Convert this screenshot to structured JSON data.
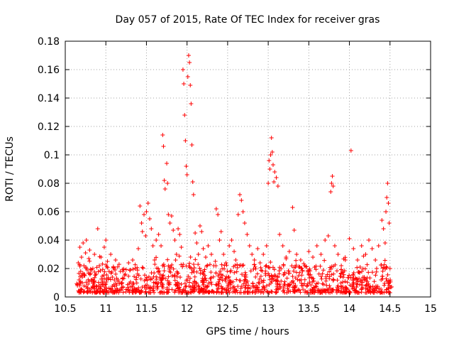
{
  "chart_data": {
    "type": "scatter",
    "title": "Day 057 of 2015, Rate Of TEC Index for receiver gras",
    "xlabel": "GPS time / hours",
    "ylabel": "ROTI / TECUs",
    "xlim": [
      10.5,
      15
    ],
    "ylim": [
      0,
      0.18
    ],
    "xticks": [
      "10.5",
      "11",
      "11.5",
      "12",
      "12.5",
      "13",
      "13.5",
      "14",
      "14.5",
      "15"
    ],
    "yticks": [
      "0",
      "0.02",
      "0.04",
      "0.06",
      "0.08",
      "0.1",
      "0.12",
      "0.14",
      "0.16",
      "0.18"
    ],
    "grid": true,
    "marker": "+",
    "color": "#ff0000",
    "series": [
      {
        "name": "ROTI",
        "points": [
          [
            10.65,
            0.008
          ],
          [
            10.66,
            0.024
          ],
          [
            10.67,
            0.012
          ],
          [
            10.68,
            0.035
          ],
          [
            10.69,
            0.018
          ],
          [
            10.7,
            0.028
          ],
          [
            10.71,
            0.01
          ],
          [
            10.72,
            0.038
          ],
          [
            10.73,
            0.022
          ],
          [
            10.74,
            0.015
          ],
          [
            10.75,
            0.031
          ],
          [
            10.76,
            0.04
          ],
          [
            10.77,
            0.019
          ],
          [
            10.78,
            0.009
          ],
          [
            10.79,
            0.027
          ],
          [
            10.8,
            0.033
          ],
          [
            10.82,
            0.012
          ],
          [
            10.84,
            0.02
          ],
          [
            10.86,
            0.03
          ],
          [
            10.88,
            0.016
          ],
          [
            10.9,
            0.048
          ],
          [
            10.92,
            0.022
          ],
          [
            10.94,
            0.028
          ],
          [
            10.96,
            0.011
          ],
          [
            10.98,
            0.035
          ],
          [
            11.0,
            0.04
          ],
          [
            11.02,
            0.025
          ],
          [
            11.04,
            0.018
          ],
          [
            11.06,
            0.03
          ],
          [
            11.08,
            0.014
          ],
          [
            11.1,
            0.02
          ],
          [
            11.12,
            0.026
          ],
          [
            11.15,
            0.012
          ],
          [
            11.18,
            0.018
          ],
          [
            11.2,
            0.01
          ],
          [
            11.24,
            0.016
          ],
          [
            11.28,
            0.024
          ],
          [
            11.3,
            0.019
          ],
          [
            11.33,
            0.026
          ],
          [
            11.36,
            0.02
          ],
          [
            11.4,
            0.034
          ],
          [
            11.42,
            0.064
          ],
          [
            11.44,
            0.052
          ],
          [
            11.45,
            0.046
          ],
          [
            11.47,
            0.058
          ],
          [
            11.49,
            0.043
          ],
          [
            11.5,
            0.06
          ],
          [
            11.52,
            0.066
          ],
          [
            11.54,
            0.055
          ],
          [
            11.56,
            0.048
          ],
          [
            11.58,
            0.036
          ],
          [
            11.6,
            0.026
          ],
          [
            11.62,
            0.04
          ],
          [
            11.65,
            0.044
          ],
          [
            11.68,
            0.036
          ],
          [
            11.7,
            0.114
          ],
          [
            11.71,
            0.106
          ],
          [
            11.72,
            0.082
          ],
          [
            11.73,
            0.076
          ],
          [
            11.75,
            0.094
          ],
          [
            11.76,
            0.08
          ],
          [
            11.77,
            0.058
          ],
          [
            11.79,
            0.052
          ],
          [
            11.81,
            0.057
          ],
          [
            11.83,
            0.047
          ],
          [
            11.85,
            0.04
          ],
          [
            11.87,
            0.03
          ],
          [
            11.89,
            0.048
          ],
          [
            11.91,
            0.044
          ],
          [
            11.93,
            0.035
          ],
          [
            11.95,
            0.16
          ],
          [
            11.96,
            0.15
          ],
          [
            11.97,
            0.128
          ],
          [
            11.98,
            0.11
          ],
          [
            11.99,
            0.092
          ],
          [
            12.0,
            0.086
          ],
          [
            12.01,
            0.155
          ],
          [
            12.02,
            0.17
          ],
          [
            12.03,
            0.165
          ],
          [
            12.04,
            0.149
          ],
          [
            12.05,
            0.136
          ],
          [
            12.06,
            0.107
          ],
          [
            12.07,
            0.081
          ],
          [
            12.08,
            0.072
          ],
          [
            12.1,
            0.045
          ],
          [
            12.12,
            0.038
          ],
          [
            12.14,
            0.03
          ],
          [
            12.16,
            0.05
          ],
          [
            12.18,
            0.046
          ],
          [
            12.2,
            0.034
          ],
          [
            12.23,
            0.028
          ],
          [
            12.26,
            0.036
          ],
          [
            12.3,
            0.03
          ],
          [
            12.33,
            0.022
          ],
          [
            12.36,
            0.062
          ],
          [
            12.38,
            0.058
          ],
          [
            12.4,
            0.04
          ],
          [
            12.42,
            0.046
          ],
          [
            12.45,
            0.03
          ],
          [
            12.48,
            0.024
          ],
          [
            12.52,
            0.036
          ],
          [
            12.55,
            0.04
          ],
          [
            12.58,
            0.032
          ],
          [
            12.6,
            0.026
          ],
          [
            12.63,
            0.058
          ],
          [
            12.65,
            0.072
          ],
          [
            12.67,
            0.068
          ],
          [
            12.69,
            0.06
          ],
          [
            12.71,
            0.052
          ],
          [
            12.74,
            0.044
          ],
          [
            12.77,
            0.036
          ],
          [
            12.8,
            0.03
          ],
          [
            12.83,
            0.026
          ],
          [
            12.87,
            0.034
          ],
          [
            12.9,
            0.024
          ],
          [
            12.94,
            0.03
          ],
          [
            12.98,
            0.036
          ],
          [
            13.0,
            0.08
          ],
          [
            13.01,
            0.096
          ],
          [
            13.02,
            0.09
          ],
          [
            13.03,
            0.1
          ],
          [
            13.04,
            0.112
          ],
          [
            13.05,
            0.102
          ],
          [
            13.06,
            0.093
          ],
          [
            13.07,
            0.081
          ],
          [
            13.08,
            0.088
          ],
          [
            13.1,
            0.084
          ],
          [
            13.12,
            0.078
          ],
          [
            13.14,
            0.044
          ],
          [
            13.18,
            0.036
          ],
          [
            13.22,
            0.028
          ],
          [
            13.26,
            0.032
          ],
          [
            13.3,
            0.063
          ],
          [
            13.32,
            0.047
          ],
          [
            13.35,
            0.03
          ],
          [
            13.4,
            0.026
          ],
          [
            13.45,
            0.022
          ],
          [
            13.5,
            0.032
          ],
          [
            13.55,
            0.028
          ],
          [
            13.6,
            0.036
          ],
          [
            13.65,
            0.03
          ],
          [
            13.7,
            0.04
          ],
          [
            13.74,
            0.043
          ],
          [
            13.77,
            0.074
          ],
          [
            13.78,
            0.08
          ],
          [
            13.79,
            0.085
          ],
          [
            13.8,
            0.078
          ],
          [
            13.82,
            0.036
          ],
          [
            13.86,
            0.03
          ],
          [
            13.9,
            0.022
          ],
          [
            13.95,
            0.026
          ],
          [
            14.0,
            0.041
          ],
          [
            14.02,
            0.103
          ],
          [
            14.05,
            0.034
          ],
          [
            14.1,
            0.026
          ],
          [
            14.15,
            0.036
          ],
          [
            14.2,
            0.03
          ],
          [
            14.24,
            0.04
          ],
          [
            14.28,
            0.034
          ],
          [
            14.32,
            0.026
          ],
          [
            14.36,
            0.036
          ],
          [
            14.4,
            0.054
          ],
          [
            14.42,
            0.048
          ],
          [
            14.44,
            0.038
          ],
          [
            14.45,
            0.06
          ],
          [
            14.46,
            0.07
          ],
          [
            14.47,
            0.08
          ],
          [
            14.48,
            0.066
          ],
          [
            14.49,
            0.052
          ],
          [
            14.5,
            0.02
          ]
        ]
      }
    ]
  }
}
